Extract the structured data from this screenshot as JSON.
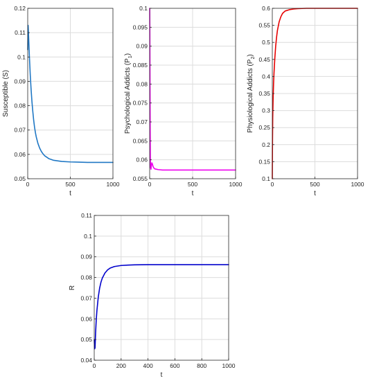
{
  "chart_data": [
    {
      "type": "line",
      "xlabel": "t",
      "ylabel": "Susceptible (S)",
      "xlim": [
        0,
        1000
      ],
      "ylim": [
        0.05,
        0.12
      ],
      "xticks": [
        0,
        500,
        1000
      ],
      "yticks": [
        0.05,
        0.06,
        0.07,
        0.08,
        0.09,
        0.1,
        0.11,
        0.12
      ],
      "yticklabels": [
        "0.05",
        "0.06",
        "0.07",
        "0.08",
        "0.09",
        "0.1",
        "0.11",
        "0.12"
      ],
      "grid": true,
      "series": [
        {
          "color": "#1f77c4",
          "x": [
            0,
            5,
            10,
            20,
            30,
            40,
            50,
            60,
            70,
            80,
            90,
            100,
            120,
            140,
            160,
            180,
            200,
            250,
            300,
            400,
            500,
            600,
            700,
            800,
            900,
            1000
          ],
          "y": [
            0.103,
            0.113,
            0.109,
            0.1,
            0.0925,
            0.0865,
            0.0815,
            0.0775,
            0.074,
            0.0712,
            0.069,
            0.0672,
            0.0645,
            0.0626,
            0.0612,
            0.0602,
            0.0594,
            0.0582,
            0.0576,
            0.0571,
            0.0569,
            0.0568,
            0.0567,
            0.0567,
            0.0567,
            0.0567
          ]
        }
      ]
    },
    {
      "type": "line",
      "xlabel": "t",
      "ylabel": "Psychological Addicts (P1)",
      "xlim": [
        0,
        1000
      ],
      "ylim": [
        0.055,
        0.1
      ],
      "xticks": [
        0,
        500,
        1000
      ],
      "yticks": [
        0.055,
        0.06,
        0.065,
        0.07,
        0.075,
        0.08,
        0.085,
        0.09,
        0.095,
        0.1
      ],
      "yticklabels": [
        "0.055",
        "0.06",
        "0.065",
        "0.07",
        "0.075",
        "0.08",
        "0.085",
        "0.09",
        "0.095",
        "0.1"
      ],
      "grid": true,
      "series": [
        {
          "color": "#ee00ee",
          "x": [
            0,
            1,
            2,
            4,
            6,
            8,
            10,
            15,
            20,
            25,
            30,
            40,
            50,
            60,
            80,
            100,
            150,
            200,
            300,
            500,
            700,
            1000
          ],
          "y": [
            0.1,
            0.1,
            0.095,
            0.08,
            0.068,
            0.061,
            0.058,
            0.0575,
            0.0585,
            0.0592,
            0.059,
            0.0582,
            0.0578,
            0.0576,
            0.0575,
            0.0574,
            0.0573,
            0.0573,
            0.0573,
            0.0573,
            0.0573,
            0.0573
          ]
        }
      ]
    },
    {
      "type": "line",
      "xlabel": "t",
      "ylabel": "Physiological Addicts (P2)",
      "xlim": [
        0,
        1000
      ],
      "ylim": [
        0.1,
        0.6
      ],
      "xticks": [
        0,
        500,
        1000
      ],
      "yticks": [
        0.1,
        0.15,
        0.2,
        0.25,
        0.3,
        0.35,
        0.4,
        0.45,
        0.5,
        0.55,
        0.6
      ],
      "yticklabels": [
        "0.1",
        "0.15",
        "0.2",
        "0.25",
        "0.3",
        "0.35",
        "0.4",
        "0.45",
        "0.5",
        "0.55",
        "0.6"
      ],
      "grid": true,
      "series": [
        {
          "color": "#e60000",
          "x": [
            0,
            2,
            5,
            10,
            15,
            20,
            30,
            40,
            50,
            60,
            80,
            100,
            120,
            150,
            200,
            250,
            300,
            400,
            500,
            700,
            1000
          ],
          "y": [
            0.1,
            0.2,
            0.28,
            0.34,
            0.38,
            0.41,
            0.455,
            0.49,
            0.515,
            0.535,
            0.56,
            0.575,
            0.585,
            0.592,
            0.596,
            0.598,
            0.599,
            0.6,
            0.6,
            0.6,
            0.6
          ]
        }
      ]
    },
    {
      "type": "line",
      "xlabel": "t",
      "ylabel": "R",
      "xlim": [
        0,
        1000
      ],
      "ylim": [
        0.04,
        0.11
      ],
      "xticks": [
        0,
        200,
        400,
        600,
        800,
        1000
      ],
      "yticks": [
        0.04,
        0.05,
        0.06,
        0.07,
        0.08,
        0.09,
        0.1,
        0.11
      ],
      "yticklabels": [
        "0.04",
        "0.05",
        "0.06",
        "0.07",
        "0.08",
        "0.09",
        "0.1",
        "0.11"
      ],
      "grid": true,
      "series": [
        {
          "color": "#0000cc",
          "x": [
            0,
            3,
            6,
            10,
            15,
            20,
            30,
            40,
            50,
            60,
            80,
            100,
            120,
            150,
            200,
            250,
            300,
            400,
            500,
            600,
            800,
            1000
          ],
          "y": [
            0.05,
            0.0455,
            0.046,
            0.053,
            0.0595,
            0.064,
            0.0705,
            0.0748,
            0.0777,
            0.0797,
            0.0822,
            0.0837,
            0.0846,
            0.0853,
            0.0858,
            0.086,
            0.0861,
            0.0862,
            0.0862,
            0.0862,
            0.0862,
            0.0862
          ]
        }
      ]
    }
  ]
}
